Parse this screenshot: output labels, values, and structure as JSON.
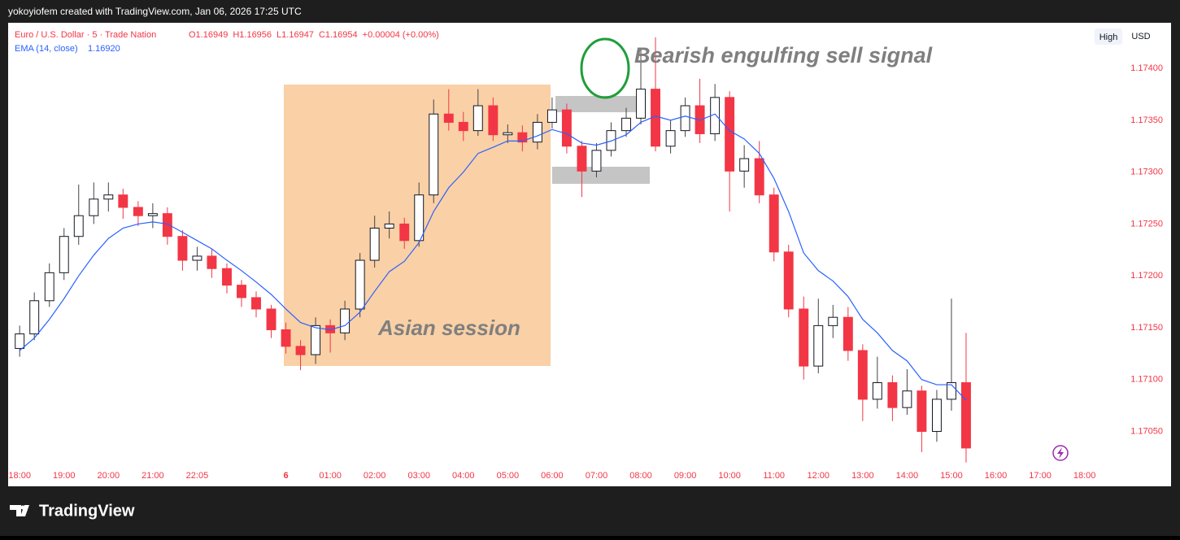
{
  "header": "yokoyiofem created with TradingView.com, Jan 06, 2026 17:25 UTC",
  "footer": "TradingView",
  "buttons": [
    "High",
    "USD"
  ],
  "chart_data": {
    "type": "candlestick",
    "legend": {
      "symbol": "Euro / U.S. Dollar · 5 · Trade Nation",
      "ohlc": [
        "O1.16949",
        "H1.16956",
        "L1.16947",
        "C1.16954"
      ],
      "change": "+0.00004 (+0.00%)"
    },
    "annotations": [
      "Bearish engulfing sell signal",
      "Asian session"
    ],
    "up_color": "#ffffff",
    "down_color": "#f23645",
    "x": [
      0,
      0.33,
      0.67,
      1,
      1.33,
      1.67,
      2,
      2.33,
      2.67,
      3,
      3.33,
      3.67,
      4,
      4.33,
      4.67,
      5,
      5.33,
      5.67,
      6,
      6.33,
      6.67,
      7,
      7.33,
      7.67,
      8,
      8.33,
      8.67,
      9,
      9.33,
      9.67,
      10,
      10.33,
      10.67,
      11,
      11.33,
      11.67,
      12,
      12.33,
      12.67,
      13,
      13.33,
      13.67,
      14,
      14.33,
      14.67,
      15,
      15.33,
      15.67,
      16,
      16.33,
      16.67,
      17,
      17.33,
      17.67,
      18,
      18.33,
      18.67,
      19,
      19.33,
      19.67,
      20,
      20.33,
      20.67,
      21,
      21.33
    ],
    "open": [
      1.1713,
      1.17144,
      1.17176,
      1.17203,
      1.17238,
      1.17258,
      1.17274,
      1.17278,
      1.17266,
      1.17258,
      1.1726,
      1.17238,
      1.17215,
      1.17219,
      1.17207,
      1.17191,
      1.17179,
      1.17168,
      1.17148,
      1.17132,
      1.17124,
      1.17152,
      1.17145,
      1.17168,
      1.17215,
      1.17246,
      1.1725,
      1.17234,
      1.17278,
      1.17356,
      1.17348,
      1.1734,
      1.17364,
      1.17336,
      1.17338,
      1.17329,
      1.17348,
      1.1736,
      1.17325,
      1.17301,
      1.17321,
      1.1734,
      1.17352,
      1.1738,
      1.17325,
      1.1734,
      1.17364,
      1.17337,
      1.17372,
      1.17301,
      1.17313,
      1.17278,
      1.17223,
      1.17168,
      1.17113,
      1.17152,
      1.1716,
      1.17128,
      1.17081,
      1.17097,
      1.17073,
      1.17089,
      1.1705,
      1.17081,
      1.17097
    ],
    "high": [
      1.17152,
      1.17184,
      1.17212,
      1.17246,
      1.17288,
      1.1729,
      1.1729,
      1.17284,
      1.17272,
      1.1727,
      1.17266,
      1.17244,
      1.17228,
      1.17226,
      1.17212,
      1.17196,
      1.17185,
      1.17172,
      1.17155,
      1.17138,
      1.1716,
      1.17158,
      1.17176,
      1.17222,
      1.17258,
      1.17262,
      1.17256,
      1.1729,
      1.1737,
      1.1738,
      1.17358,
      1.1738,
      1.17372,
      1.17346,
      1.17345,
      1.17356,
      1.17372,
      1.17366,
      1.1733,
      1.17328,
      1.17348,
      1.17362,
      1.1742,
      1.1743,
      1.1735,
      1.17372,
      1.1739,
      1.17385,
      1.17378,
      1.17326,
      1.1733,
      1.17285,
      1.1723,
      1.1718,
      1.17178,
      1.17172,
      1.1717,
      1.17134,
      1.17122,
      1.17104,
      1.1711,
      1.17094,
      1.1709,
      1.17178,
      1.17145
    ],
    "low": [
      1.17122,
      1.17138,
      1.1717,
      1.17196,
      1.1723,
      1.1725,
      1.17262,
      1.17255,
      1.17248,
      1.17246,
      1.1723,
      1.17205,
      1.17205,
      1.17198,
      1.17183,
      1.1717,
      1.1716,
      1.1714,
      1.17125,
      1.17109,
      1.17115,
      1.17126,
      1.17138,
      1.1716,
      1.17208,
      1.17236,
      1.17226,
      1.17228,
      1.1727,
      1.1734,
      1.1733,
      1.17335,
      1.1733,
      1.17328,
      1.1732,
      1.17322,
      1.17342,
      1.17318,
      1.17276,
      1.17295,
      1.17315,
      1.17334,
      1.17346,
      1.1732,
      1.17318,
      1.17334,
      1.17328,
      1.1733,
      1.17262,
      1.17285,
      1.1727,
      1.17214,
      1.1716,
      1.171,
      1.17106,
      1.1714,
      1.17118,
      1.1706,
      1.17072,
      1.1706,
      1.17066,
      1.1703,
      1.1704,
      1.1707,
      1.1702
    ],
    "close": [
      1.17144,
      1.17176,
      1.17203,
      1.17238,
      1.17258,
      1.17274,
      1.17278,
      1.17266,
      1.17258,
      1.1726,
      1.17238,
      1.17215,
      1.17219,
      1.17207,
      1.17191,
      1.17179,
      1.17168,
      1.17148,
      1.17132,
      1.17124,
      1.17152,
      1.17145,
      1.17168,
      1.17215,
      1.17246,
      1.1725,
      1.17234,
      1.17278,
      1.17356,
      1.17348,
      1.1734,
      1.17364,
      1.17336,
      1.17338,
      1.17329,
      1.17348,
      1.1736,
      1.17325,
      1.17301,
      1.17321,
      1.1734,
      1.17352,
      1.1738,
      1.17325,
      1.1734,
      1.17364,
      1.17337,
      1.17372,
      1.17301,
      1.17313,
      1.17278,
      1.17223,
      1.17168,
      1.17113,
      1.17152,
      1.1716,
      1.17128,
      1.17081,
      1.17097,
      1.17073,
      1.17089,
      1.1705,
      1.17081,
      1.17097,
      1.17034
    ],
    "series": [
      {
        "name": "EMA (14, close)",
        "last_value": "1.16920",
        "color": "#2962ff",
        "values": [
          1.17128,
          1.1714,
          1.17158,
          1.17178,
          1.172,
          1.1722,
          1.17236,
          1.17246,
          1.1725,
          1.17252,
          1.1725,
          1.17242,
          1.17234,
          1.17226,
          1.17215,
          1.17205,
          1.17194,
          1.17182,
          1.17168,
          1.17155,
          1.1715,
          1.17148,
          1.17152,
          1.17165,
          1.17185,
          1.17204,
          1.17214,
          1.17232,
          1.17262,
          1.17285,
          1.173,
          1.17318,
          1.17324,
          1.1733,
          1.1733,
          1.17335,
          1.17341,
          1.17337,
          1.17328,
          1.17326,
          1.1733,
          1.17336,
          1.17348,
          1.17354,
          1.1735,
          1.17354,
          1.1735,
          1.17356,
          1.1734,
          1.17332,
          1.17318,
          1.17294,
          1.17262,
          1.17222,
          1.17205,
          1.17195,
          1.1718,
          1.17158,
          1.17145,
          1.17128,
          1.17118,
          1.171,
          1.17095,
          1.17095,
          1.1708
        ]
      }
    ],
    "xlim": [
      -0.26,
      24.08
    ],
    "xticks": [
      {
        "value": 0,
        "label": "18:00"
      },
      {
        "value": 1,
        "label": "19:00"
      },
      {
        "value": 2,
        "label": "20:00"
      },
      {
        "value": 3,
        "label": "21:00"
      },
      {
        "value": 4,
        "label": "22:05"
      },
      6,
      {
        "value": 7,
        "label": "01:00"
      },
      {
        "value": 8,
        "label": "02:00"
      },
      {
        "value": 9,
        "label": "03:00"
      },
      {
        "value": 10,
        "label": "04:00"
      },
      {
        "value": 11,
        "label": "05:00"
      },
      {
        "value": 12,
        "label": "06:00"
      },
      {
        "value": 13,
        "label": "07:00"
      },
      {
        "value": 14,
        "label": "08:00"
      },
      {
        "value": 15,
        "label": "09:00"
      },
      {
        "value": 16,
        "label": "10:00"
      },
      {
        "value": 17,
        "label": "11:00"
      },
      {
        "value": 18,
        "label": "12:00"
      },
      {
        "value": 19,
        "label": "13:00"
      },
      {
        "value": 20,
        "label": "14:00"
      },
      {
        "value": 21,
        "label": "15:00"
      },
      {
        "value": 22,
        "label": "16:00"
      },
      {
        "value": 23,
        "label": "17:00"
      },
      {
        "value": 24,
        "label": "18:00"
      }
    ],
    "ylim": [
      1.17019,
      1.17444
    ],
    "yticks": [
      {
        "value": 1.1705,
        "label": "1.17050"
      },
      {
        "value": 1.171,
        "label": "1.17100"
      },
      {
        "value": 1.1715,
        "label": "1.17150"
      },
      {
        "value": 1.172,
        "label": "1.17200"
      },
      {
        "value": 1.1725,
        "label": "1.17250"
      },
      {
        "value": 1.173,
        "label": "1.17300"
      },
      {
        "value": 1.1735,
        "label": "1.17350"
      },
      {
        "value": 1.174,
        "label": "1.17400"
      }
    ],
    "grid": false
  }
}
